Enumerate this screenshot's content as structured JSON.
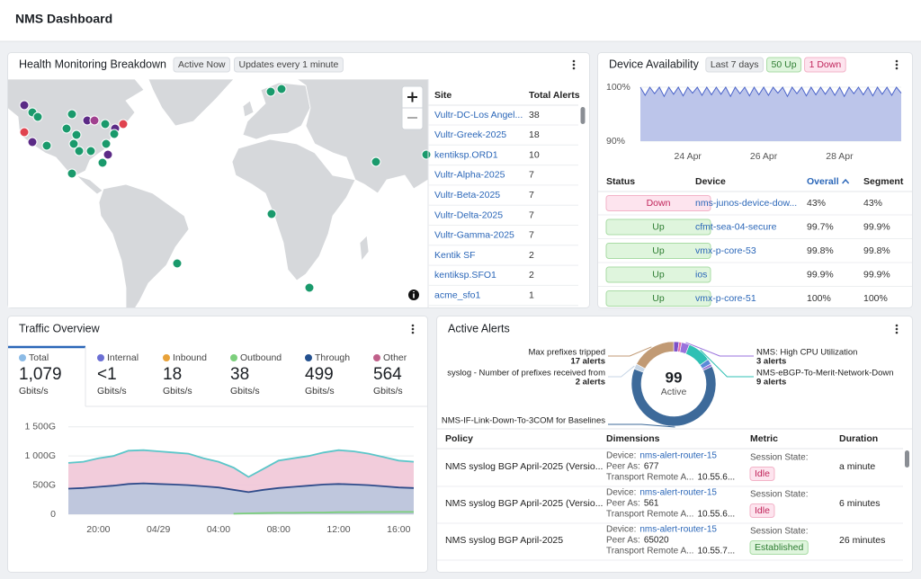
{
  "header": {
    "title": "NMS Dashboard"
  },
  "health": {
    "title": "Health Monitoring Breakdown",
    "badges": [
      "Active Now",
      "Updates every 1 minute"
    ],
    "columns": [
      "Site",
      "Total Alerts"
    ],
    "rows": [
      [
        "Vultr-DC-Los Angel...",
        38
      ],
      [
        "Vultr-Greek-2025",
        18
      ],
      [
        "kentiksp.ORD1",
        10
      ],
      [
        "Vultr-Alpha-2025",
        7
      ],
      [
        "Vultr-Beta-2025",
        7
      ],
      [
        "Vultr-Delta-2025",
        7
      ],
      [
        "Vultr-Gamma-2025",
        7
      ],
      [
        "Kentik SF",
        2
      ],
      [
        "kentiksp.SFO1",
        2
      ],
      [
        "acme_sfo1",
        1
      ]
    ]
  },
  "availability": {
    "title": "Device Availability",
    "badges": [
      {
        "text": "Last 7 days",
        "colors": [
          "#eceef1",
          "#d9dce1",
          "#444444"
        ]
      },
      {
        "text": "50 Up",
        "colors": [
          "#dff5dd",
          "#a9dca5",
          "#2e7d32"
        ]
      },
      {
        "text": "1 Down",
        "colors": [
          "#fde4ee",
          "#f3b3c8",
          "#c0245a"
        ]
      }
    ],
    "chart": {
      "type": "area",
      "color": "#4a63c9",
      "fill": "#bcc5ea",
      "ylim": [
        90,
        100
      ],
      "yticks": [
        {
          "value": 100,
          "label": "100%"
        },
        {
          "value": 90,
          "label": "90%"
        }
      ],
      "categories": [
        null,
        null,
        null,
        null,
        null,
        null,
        null,
        null,
        null,
        null,
        "24 Apr",
        null,
        null,
        null,
        null,
        null,
        null,
        null,
        null,
        null,
        null,
        null,
        null,
        null,
        null,
        null,
        "26 Apr",
        null,
        null,
        null,
        null,
        null,
        null,
        null,
        null,
        null,
        null,
        null,
        null,
        null,
        null,
        null,
        "28 Apr",
        null,
        null,
        null,
        null,
        null,
        null,
        null,
        null,
        null,
        null,
        null,
        null,
        null
      ],
      "values": [
        100,
        98.5,
        100,
        98.8,
        100,
        98.3,
        100,
        98.7,
        100,
        98.4,
        100,
        98.9,
        100,
        98.5,
        100,
        98.6,
        100,
        98.7,
        100,
        98.3,
        100,
        98.8,
        100,
        98.4,
        100,
        98.6,
        100,
        98.5,
        100,
        98.9,
        100,
        98.3,
        100,
        98.8,
        100,
        98.4,
        100,
        98.6,
        100,
        98.7,
        100,
        98.5,
        100,
        98.3,
        100,
        98.8,
        100,
        98.6,
        100,
        98.4,
        100,
        98.7,
        100,
        98.5,
        100,
        98.9
      ]
    },
    "columns": [
      "Status",
      "Device",
      "Overall",
      "Segment"
    ],
    "rows": [
      {
        "status": "Down",
        "status_colors": [
          "#fde4ee",
          "#f3b3c8",
          "#c0245a"
        ],
        "device": "nms-junos-device-dow...",
        "overall": "43%",
        "segment": "43%"
      },
      {
        "status": "Up",
        "status_colors": [
          "#dff5dd",
          "#a9dca5",
          "#2e7d32"
        ],
        "device": "cfmt-sea-04-secure",
        "overall": "99.7%",
        "segment": "99.9%"
      },
      {
        "status": "Up",
        "status_colors": [
          "#dff5dd",
          "#a9dca5",
          "#2e7d32"
        ],
        "device": "vmx-p-core-53",
        "overall": "99.8%",
        "segment": "99.8%"
      },
      {
        "status": "Up",
        "status_colors": [
          "#dff5dd",
          "#a9dca5",
          "#2e7d32"
        ],
        "device": "ios",
        "overall": "99.9%",
        "segment": "99.9%"
      },
      {
        "status": "Up",
        "status_colors": [
          "#dff5dd",
          "#a9dca5",
          "#2e7d32"
        ],
        "device": "vmx-p-core-51",
        "overall": "100%",
        "segment": "100%"
      }
    ]
  },
  "traffic": {
    "title": "Traffic Overview",
    "tabs": [
      {
        "name": "Total",
        "color": "#8cbbe6",
        "value": "1,079",
        "unit": "Gbits/s",
        "line_color": "#5cc6c9",
        "fill": "#f1c7d7",
        "values": [
          880,
          900,
          960,
          1000,
          1090,
          1100,
          1080,
          1060,
          1040,
          960,
          900,
          800,
          640,
          780,
          920,
          960,
          1000,
          1060,
          1100,
          1080,
          1040,
          980,
          920,
          900
        ]
      },
      {
        "name": "Internal",
        "color": "#6b6fd4",
        "value": "<1",
        "unit": "Gbits/s"
      },
      {
        "name": "Inbound",
        "color": "#e8a23a",
        "value": "18",
        "unit": "Gbits/s"
      },
      {
        "name": "Outbound",
        "color": "#7ccf7c",
        "value": "38",
        "unit": "Gbits/s",
        "line_color": "#7ccf7c",
        "values": [
          null,
          null,
          null,
          null,
          null,
          null,
          null,
          null,
          null,
          null,
          null,
          10,
          15,
          20,
          25,
          25,
          30,
          30,
          35,
          35,
          38,
          38,
          40,
          40
        ]
      },
      {
        "name": "Through",
        "color": "#23508f",
        "value": "499",
        "unit": "Gbits/s",
        "line_color": "#2f4b8a",
        "fill": "#b9c7dd",
        "values": [
          440,
          450,
          470,
          490,
          520,
          530,
          520,
          510,
          500,
          480,
          460,
          420,
          380,
          420,
          450,
          470,
          490,
          510,
          520,
          510,
          500,
          480,
          460,
          450
        ]
      },
      {
        "name": "Other",
        "color": "#c0608a",
        "value": "564",
        "unit": "Gbits/s"
      }
    ],
    "chart": {
      "type": "area",
      "ylim": [
        0,
        1650
      ],
      "yticks": [
        {
          "value": 1500,
          "label": "1 500G"
        },
        {
          "value": 1000,
          "label": "1 000G"
        },
        {
          "value": 500,
          "label": "500G"
        },
        0
      ],
      "categories": [
        null,
        null,
        "20:00",
        null,
        null,
        null,
        "04/29",
        null,
        null,
        null,
        "04:00",
        null,
        null,
        null,
        "08:00",
        null,
        null,
        null,
        "12:00",
        null,
        null,
        null,
        "16:00",
        null
      ],
      "grid": true
    }
  },
  "alerts": {
    "title": "Active Alerts",
    "donut": {
      "type": "donut",
      "total": 99,
      "total_label": "Active",
      "segments": [
        {
          "label": null,
          "value": 2,
          "color": "#7b4fc8"
        },
        {
          "label": null,
          "value": 1,
          "color": "#e36aa8"
        },
        {
          "label": "NMS: High CPU Utilization",
          "value": 3,
          "value_label": "3 alerts",
          "color": "#9a72dc"
        },
        {
          "label": "NMS-eBGP-To-Merit-Network-Down",
          "value": 9,
          "value_label": "9 alerts",
          "color": "#2fc0b4"
        },
        {
          "label": null,
          "value": 2,
          "color": "#5b8ad8"
        },
        {
          "label": null,
          "value": 1,
          "color": "#9a76d8"
        },
        {
          "label": "NMS-IF-Link-Down-To-3COM for Baselines",
          "value": 62,
          "color": "#3d6a9a"
        },
        {
          "label": "syslog - Number of prefixes received from",
          "value": 2,
          "value_label": "2 alerts",
          "color": "#c7d6e6"
        },
        {
          "label": "Max prefixes tripped",
          "value": 17,
          "value_label": "17 alerts",
          "color": "#c19a74"
        }
      ]
    },
    "columns": [
      "Policy",
      "Dimensions",
      "Metric",
      "Duration"
    ],
    "rows": [
      {
        "policy": "NMS syslog BGP April-2025 (Versio...",
        "device_label": "Device:",
        "device": "nms-alert-router-15",
        "peer_label": "Peer As:",
        "peer": "677",
        "transport_label": "Transport Remote A...",
        "transport": "10.55.6...",
        "metric_label": "Session State:",
        "state": "Idle",
        "state_colors": [
          "#fde4ee",
          "#f3b3c8",
          "#c0245a"
        ],
        "duration": "a minute"
      },
      {
        "policy": "NMS syslog BGP April-2025 (Versio...",
        "device_label": "Device:",
        "device": "nms-alert-router-15",
        "peer_label": "Peer As:",
        "peer": "561",
        "transport_label": "Transport Remote A...",
        "transport": "10.55.6...",
        "metric_label": "Session State:",
        "state": "Idle",
        "state_colors": [
          "#fde4ee",
          "#f3b3c8",
          "#c0245a"
        ],
        "duration": "6 minutes"
      },
      {
        "policy": "NMS syslog BGP April-2025",
        "device_label": "Device:",
        "device": "nms-alert-router-15",
        "peer_label": "Peer As:",
        "peer": "65020",
        "transport_label": "Transport Remote A...",
        "transport": "10.55.7...",
        "metric_label": "Session State:",
        "state": "Established",
        "state_colors": [
          "#dff5dd",
          "#a9dca5",
          "#2e7d32"
        ],
        "duration": "26 minutes"
      }
    ]
  }
}
